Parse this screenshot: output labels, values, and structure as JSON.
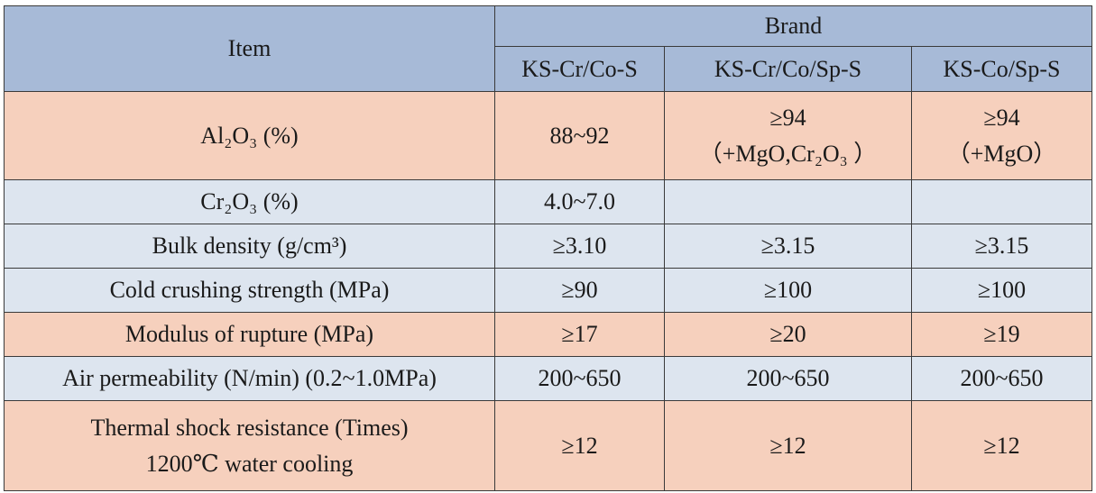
{
  "table": {
    "item_header": "Item",
    "brand_header": "Brand",
    "brands": [
      "KS-Cr/Co-S",
      "KS-Cr/Co/Sp-S",
      "KS-Co/Sp-S"
    ],
    "rows": [
      {
        "item": "Al₂O₃ (%)",
        "values": [
          [
            "88~92"
          ],
          [
            "≥94",
            "（+MgO,Cr₂O₃ ）"
          ],
          [
            "≥94",
            "（+MgO）"
          ]
        ]
      },
      {
        "item": "Cr₂O₃ (%)",
        "values": [
          [
            "4.0~7.0"
          ],
          [
            ""
          ],
          [
            ""
          ]
        ]
      },
      {
        "item": "Bulk density (g/cm³)",
        "values": [
          [
            "≥3.10"
          ],
          [
            "≥3.15"
          ],
          [
            "≥3.15"
          ]
        ]
      },
      {
        "item": "Cold crushing strength (MPa)",
        "values": [
          [
            "≥90"
          ],
          [
            "≥100"
          ],
          [
            "≥100"
          ]
        ]
      },
      {
        "item": "Modulus of rupture (MPa)",
        "values": [
          [
            "≥17"
          ],
          [
            "≥20"
          ],
          [
            "≥19"
          ]
        ]
      },
      {
        "item": "Air permeability (N/min) (0.2~1.0MPa)",
        "values": [
          [
            "200~650"
          ],
          [
            "200~650"
          ],
          [
            "200~650"
          ]
        ]
      },
      {
        "item": "Thermal shock resistance (Times)",
        "item_line2": "1200℃ water cooling",
        "values": [
          [
            "≥12"
          ],
          [
            "≥12"
          ],
          [
            "≥12"
          ]
        ]
      }
    ]
  },
  "colors": {
    "header_bg": "#a7bad7",
    "blue_row_bg": "#dde5ef",
    "pink_row_bg": "#f6d0bd",
    "border": "#3a3a3a"
  }
}
